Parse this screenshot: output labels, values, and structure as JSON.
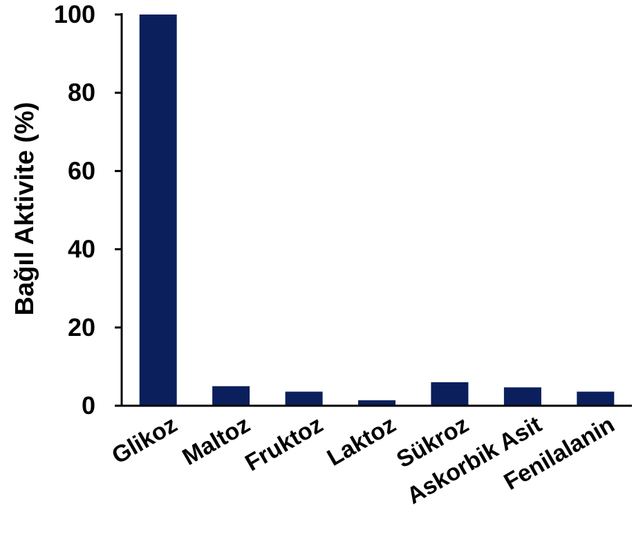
{
  "chart_data": {
    "type": "bar",
    "title": "",
    "xlabel": "",
    "ylabel": "Bağıl Aktivite (%)",
    "categories": [
      "Glikoz",
      "Maltoz",
      "Fruktoz",
      "Laktoz",
      "Sükroz",
      "Askorbik Asit",
      "Fenilalanin"
    ],
    "values": [
      100,
      5,
      3.6,
      1.4,
      6,
      4.7,
      3.6
    ],
    "ylim": [
      0,
      100
    ],
    "yticks": [
      "0",
      "20",
      "40",
      "60",
      "80",
      "100"
    ],
    "grid": false,
    "legend": "none",
    "bar_color": "#0a1f5c"
  }
}
